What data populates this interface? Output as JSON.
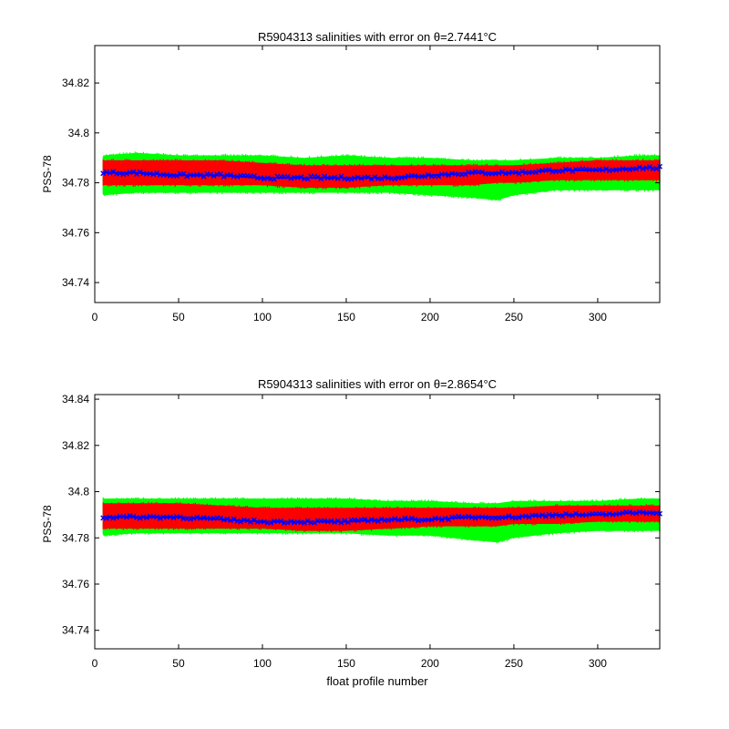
{
  "chart_data": [
    {
      "type": "line",
      "title": "R5904313 salinities with error on θ=2.7441°C",
      "xlabel": "",
      "ylabel": "PSS-78",
      "xlim": [
        0,
        337
      ],
      "ylim": [
        34.732,
        34.835
      ],
      "xticks": [
        0,
        50,
        100,
        150,
        200,
        250,
        300
      ],
      "yticks": [
        34.74,
        34.76,
        34.78,
        34.8,
        34.82
      ],
      "ytick_labels": [
        "34.74",
        "34.76",
        "34.78",
        "34.8",
        "34.82"
      ],
      "x": [
        5,
        25,
        50,
        75,
        100,
        125,
        150,
        175,
        200,
        225,
        240,
        250,
        275,
        300,
        325,
        337
      ],
      "series": [
        {
          "color": "#00ff00",
          "role": "band",
          "upper": [
            34.791,
            34.792,
            34.791,
            34.791,
            34.791,
            34.79,
            34.791,
            34.79,
            34.79,
            34.789,
            34.789,
            34.789,
            34.79,
            34.79,
            34.791,
            34.791
          ],
          "lower": [
            34.775,
            34.776,
            34.776,
            34.776,
            34.776,
            34.776,
            34.776,
            34.776,
            34.775,
            34.774,
            34.773,
            34.775,
            34.777,
            34.777,
            34.777,
            34.777
          ]
        },
        {
          "color": "#ff0000",
          "role": "band",
          "upper": [
            34.789,
            34.789,
            34.789,
            34.789,
            34.788,
            34.787,
            34.787,
            34.787,
            34.787,
            34.787,
            34.787,
            34.787,
            34.788,
            34.789,
            34.789,
            34.789
          ],
          "lower": [
            34.779,
            34.779,
            34.779,
            34.779,
            34.779,
            34.778,
            34.778,
            34.779,
            34.779,
            34.779,
            34.78,
            34.78,
            34.781,
            34.781,
            34.781,
            34.781
          ]
        },
        {
          "color": "#0000ff",
          "role": "line",
          "values": [
            34.784,
            34.784,
            34.783,
            34.783,
            34.782,
            34.782,
            34.782,
            34.782,
            34.783,
            34.784,
            34.784,
            34.784,
            34.785,
            34.785,
            34.786,
            34.786
          ]
        }
      ]
    },
    {
      "type": "line",
      "title": "R5904313 salinities with error on θ=2.8654°C",
      "xlabel": "float profile number",
      "ylabel": "PSS-78",
      "xlim": [
        0,
        337
      ],
      "ylim": [
        34.732,
        34.842
      ],
      "xticks": [
        0,
        50,
        100,
        150,
        200,
        250,
        300
      ],
      "yticks": [
        34.74,
        34.76,
        34.78,
        34.8,
        34.82,
        34.84
      ],
      "ytick_labels": [
        "34.74",
        "34.76",
        "34.78",
        "34.8",
        "34.82",
        "34.84"
      ],
      "x": [
        5,
        25,
        50,
        75,
        100,
        125,
        150,
        175,
        200,
        225,
        240,
        250,
        275,
        300,
        325,
        337
      ],
      "series": [
        {
          "color": "#00ff00",
          "role": "band",
          "upper": [
            34.797,
            34.797,
            34.797,
            34.797,
            34.797,
            34.797,
            34.797,
            34.796,
            34.796,
            34.795,
            34.795,
            34.796,
            34.796,
            34.796,
            34.797,
            34.797
          ],
          "lower": [
            34.781,
            34.782,
            34.782,
            34.782,
            34.782,
            34.782,
            34.782,
            34.781,
            34.781,
            34.779,
            34.778,
            34.78,
            34.782,
            34.783,
            34.783,
            34.783
          ]
        },
        {
          "color": "#ff0000",
          "role": "band",
          "upper": [
            34.795,
            34.795,
            34.795,
            34.794,
            34.793,
            34.793,
            34.793,
            34.793,
            34.793,
            34.793,
            34.793,
            34.793,
            34.794,
            34.794,
            34.794,
            34.794
          ],
          "lower": [
            34.784,
            34.784,
            34.784,
            34.784,
            34.784,
            34.783,
            34.783,
            34.784,
            34.785,
            34.785,
            34.785,
            34.786,
            34.786,
            34.787,
            34.787,
            34.787
          ]
        },
        {
          "color": "#0000ff",
          "role": "line",
          "values": [
            34.789,
            34.789,
            34.789,
            34.788,
            34.787,
            34.787,
            34.787,
            34.788,
            34.788,
            34.789,
            34.789,
            34.789,
            34.79,
            34.79,
            34.791,
            34.791
          ]
        }
      ]
    }
  ]
}
